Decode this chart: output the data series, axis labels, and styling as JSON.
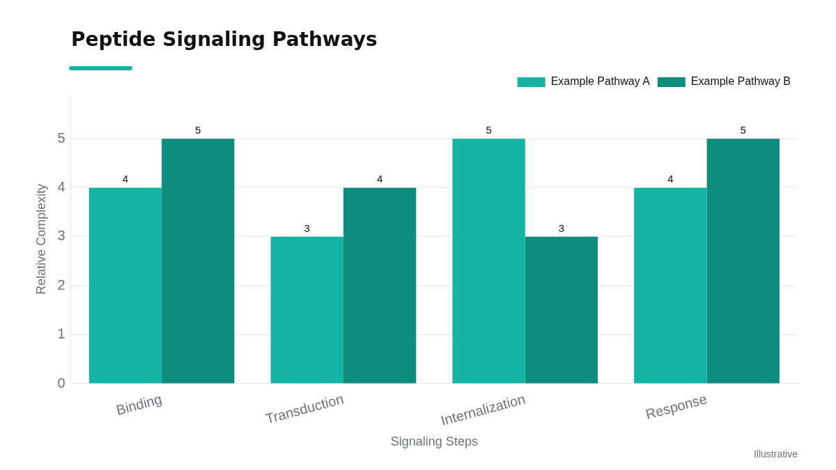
{
  "chart_data": {
    "type": "bar",
    "title": "Peptide Signaling Pathways",
    "xlabel": "Signaling Steps",
    "ylabel": "Relative Complexity",
    "categories": [
      "Binding",
      "Transduction",
      "Internalization",
      "Response"
    ],
    "series": [
      {
        "name": "Example Pathway A",
        "color": "#14b3a5",
        "values": [
          4,
          3,
          5,
          4
        ]
      },
      {
        "name": "Example Pathway B",
        "color": "#0e8c7e",
        "values": [
          5,
          4,
          3,
          5
        ]
      }
    ],
    "ylim": [
      0,
      5.9
    ],
    "yticks": [
      0,
      1,
      2,
      3,
      4,
      5
    ],
    "grid": "y",
    "legend": "top right",
    "data_labels": true,
    "annotations": [
      "Illustrative"
    ]
  }
}
